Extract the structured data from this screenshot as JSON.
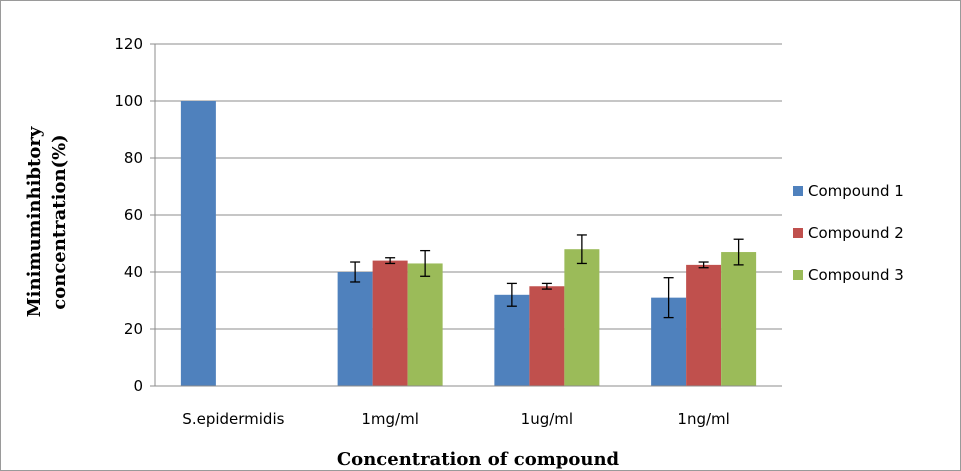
{
  "chart_data": {
    "type": "bar",
    "title": "",
    "xlabel": "Concentration of compound",
    "ylabel_lines": [
      "Minimuminhibtory",
      "concentration(%)"
    ],
    "ylim": [
      0,
      120
    ],
    "yticks": [
      0,
      20,
      40,
      60,
      80,
      100,
      120
    ],
    "grid": true,
    "legend_position": "right",
    "categories": [
      "S.epidermidis",
      "1mg/ml",
      "1ug/ml",
      "1ng/ml"
    ],
    "series": [
      {
        "name": "Compound 1",
        "color": "#4F81BD",
        "values": [
          100,
          40,
          32,
          31
        ],
        "errors": [
          0,
          3.5,
          4,
          7
        ]
      },
      {
        "name": "Compound 2",
        "color": "#C0504D",
        "values": [
          null,
          44,
          35,
          42.5
        ],
        "errors": [
          0,
          1,
          1,
          1
        ]
      },
      {
        "name": "Compound 3",
        "color": "#9BBB59",
        "values": [
          null,
          43,
          48,
          47
        ],
        "errors": [
          0,
          4.5,
          5,
          4.5
        ]
      }
    ]
  }
}
